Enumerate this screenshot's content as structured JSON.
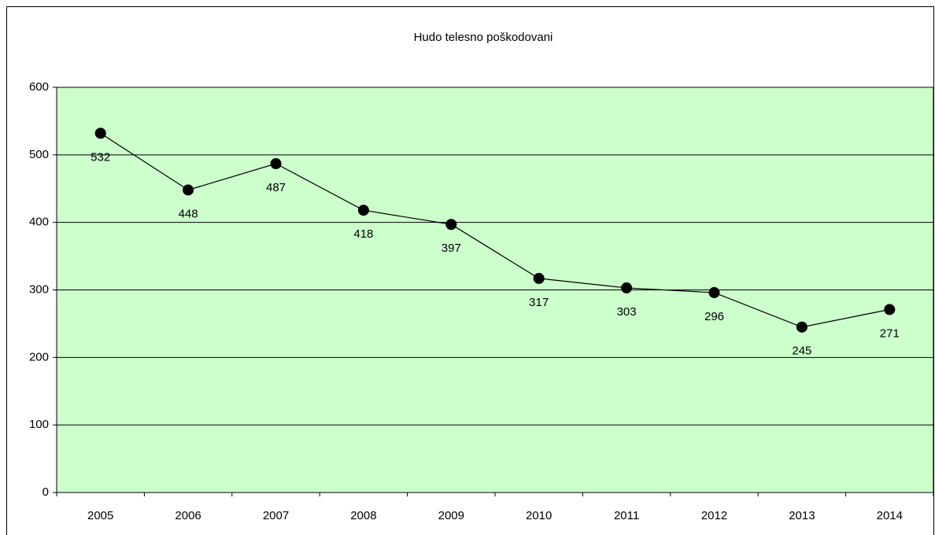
{
  "chart_data": {
    "type": "line",
    "title": "Hudo telesno poškodovani",
    "categories": [
      "2005",
      "2006",
      "2007",
      "2008",
      "2009",
      "2010",
      "2011",
      "2012",
      "2013",
      "2014"
    ],
    "series": [
      {
        "name": "Hudo telesno poškodovani",
        "color": "#000000",
        "values": [
          532,
          448,
          487,
          418,
          397,
          317,
          303,
          296,
          245,
          271
        ]
      }
    ],
    "ylim": [
      0,
      600
    ],
    "yticks": [
      0,
      100,
      200,
      300,
      400,
      500,
      600
    ],
    "grid": true,
    "plot_background": "#ccffcc"
  }
}
